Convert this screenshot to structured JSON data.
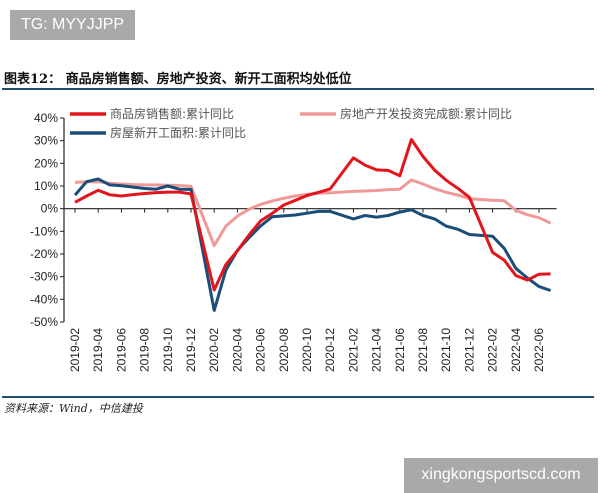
{
  "watermark_top": "TG: MYYJJPP",
  "watermark_bottom": "xingkongsportscd.com",
  "title": "图表12： 商品房销售额、房地产投资、新开工面积均处低位",
  "source": "资料来源：Wind，中信建投",
  "chart_data": {
    "type": "line",
    "title": "",
    "xlabel": "",
    "ylabel": "",
    "ylim": [
      -50,
      40
    ],
    "yticks": [
      40,
      30,
      20,
      10,
      0,
      -10,
      -20,
      -30,
      -40,
      -50
    ],
    "ytick_labels": [
      "40%",
      "30%",
      "20%",
      "10%",
      "0%",
      "-10%",
      "-20%",
      "-30%",
      "-40%",
      "-50%"
    ],
    "xtick_labels": [
      "2019-02",
      "2019-04",
      "2019-06",
      "2019-08",
      "2019-10",
      "2019-12",
      "2020-02",
      "2020-04",
      "2020-06",
      "2020-08",
      "2020-10",
      "2020-12",
      "2021-02",
      "2021-04",
      "2021-06",
      "2021-08",
      "2021-10",
      "2021-12",
      "2022-02",
      "2022-04",
      "2022-06"
    ],
    "grid": false,
    "legend_placement": "top",
    "x": [
      "2019-02",
      "2019-03",
      "2019-04",
      "2019-05",
      "2019-06",
      "2019-07",
      "2019-08",
      "2019-09",
      "2019-10",
      "2019-11",
      "2019-12",
      "2020-02",
      "2020-03",
      "2020-04",
      "2020-05",
      "2020-06",
      "2020-07",
      "2020-08",
      "2020-09",
      "2020-10",
      "2020-11",
      "2020-12",
      "2021-02",
      "2021-03",
      "2021-04",
      "2021-05",
      "2021-06",
      "2021-07",
      "2021-08",
      "2021-09",
      "2021-10",
      "2021-11",
      "2021-12",
      "2022-02",
      "2022-03",
      "2022-04",
      "2022-05",
      "2022-06",
      "2022-07"
    ],
    "series": [
      {
        "name": "商品房销售额:累计同比",
        "color": "#e3151c",
        "values": [
          2.8,
          5.6,
          8.1,
          6.1,
          5.6,
          6.2,
          6.7,
          7.1,
          7.3,
          7.3,
          6.5,
          -35.9,
          -24.7,
          -18.6,
          -11.6,
          -5.4,
          -2.1,
          1.6,
          3.7,
          5.8,
          7.2,
          8.7,
          22.4,
          19.2,
          17.1,
          16.9,
          14.5,
          30.5,
          23.0,
          17.0,
          12.5,
          9.0,
          5.0,
          -19.3,
          -22.7,
          -29.5,
          -31.5,
          -28.9,
          -28.8
        ]
      },
      {
        "name": "房地产开发投资完成额:累计同比",
        "color": "#f09999",
        "values": [
          11.6,
          11.8,
          11.9,
          11.2,
          10.9,
          10.6,
          10.5,
          10.5,
          10.3,
          10.2,
          9.9,
          -16.3,
          -7.7,
          -3.3,
          -0.3,
          1.9,
          3.4,
          4.6,
          5.6,
          6.3,
          6.8,
          7.0,
          7.6,
          7.8,
          8.0,
          8.4,
          8.6,
          12.7,
          10.9,
          8.8,
          7.2,
          6.0,
          4.4,
          3.7,
          3.5,
          -0.7,
          -2.7,
          -4.0,
          -6.4
        ]
      },
      {
        "name": "房屋新开工面积:累计同比",
        "color": "#1a4d78",
        "values": [
          6.0,
          11.9,
          13.1,
          10.5,
          10.1,
          9.5,
          8.9,
          8.6,
          10.0,
          8.6,
          8.5,
          -44.9,
          -27.2,
          -18.4,
          -12.8,
          -7.6,
          -3.6,
          -3.2,
          -2.8,
          -2.0,
          -1.2,
          -1.2,
          -4.5,
          -3.0,
          -3.7,
          -3.0,
          -1.5,
          -0.5,
          -3.0,
          -4.5,
          -7.7,
          -9.1,
          -11.4,
          -12.2,
          -17.5,
          -26.3,
          -30.6,
          -34.4,
          -36.1
        ]
      }
    ]
  }
}
